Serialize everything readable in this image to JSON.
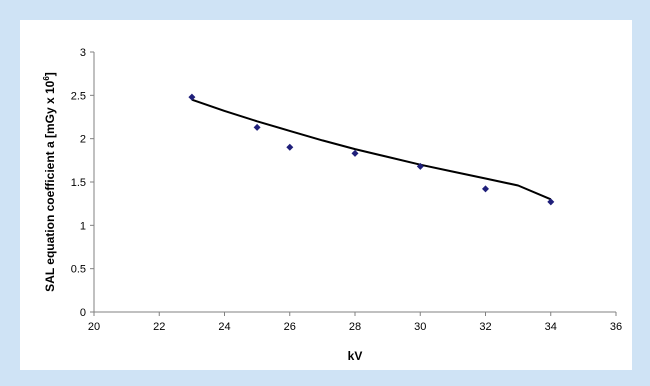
{
  "chart_data": {
    "type": "scatter",
    "xlabel": "kV",
    "ylabel_parts": [
      "SAL equation coefficient a [mGy x 10",
      "6",
      "]"
    ],
    "xlim": [
      20,
      36
    ],
    "ylim": [
      0,
      3
    ],
    "x_ticks": [
      20,
      22,
      24,
      26,
      28,
      30,
      32,
      34,
      36
    ],
    "y_ticks": [
      0,
      0.5,
      1,
      1.5,
      2,
      2.5,
      3
    ],
    "x_tick_labels": [
      "20",
      "22",
      "24",
      "26",
      "28",
      "30",
      "32",
      "34",
      "36"
    ],
    "y_tick_labels": [
      "0",
      "0.5",
      "1",
      "1.5",
      "2",
      "2.5",
      "3"
    ],
    "grid": false,
    "legend": "none",
    "series": [
      {
        "marker": "diamond",
        "points": [
          {
            "x": 23,
            "y": 2.48
          },
          {
            "x": 25,
            "y": 2.13
          },
          {
            "x": 26,
            "y": 1.9
          },
          {
            "x": 28,
            "y": 1.83
          },
          {
            "x": 30,
            "y": 1.68
          },
          {
            "x": 32,
            "y": 1.42
          },
          {
            "x": 34,
            "y": 1.27
          }
        ]
      }
    ],
    "trendline": {
      "type": "power",
      "points": [
        {
          "x": 23,
          "y": 2.45
        },
        {
          "x": 24,
          "y": 2.32
        },
        {
          "x": 25,
          "y": 2.2
        },
        {
          "x": 26,
          "y": 2.09
        },
        {
          "x": 27,
          "y": 1.98
        },
        {
          "x": 28,
          "y": 1.88
        },
        {
          "x": 29,
          "y": 1.79
        },
        {
          "x": 30,
          "y": 1.7
        },
        {
          "x": 31,
          "y": 1.62
        },
        {
          "x": 32,
          "y": 1.54
        },
        {
          "x": 33,
          "y": 1.46
        },
        {
          "x": 34,
          "y": 1.3
        }
      ]
    },
    "colors": {
      "marker": "#1f1f7a",
      "trendline": "#000000",
      "axis": "#808080",
      "page_background": "#cfe3f5",
      "chart_background": "#ffffff"
    }
  }
}
